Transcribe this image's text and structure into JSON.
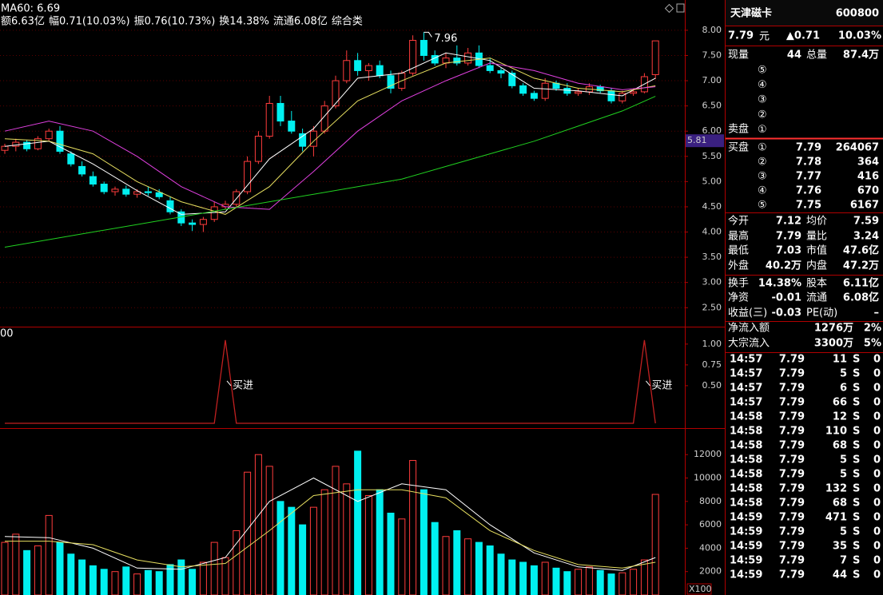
{
  "chart_data": [
    {
      "type": "candlestick",
      "legend": "MA60: 6.69",
      "info": [
        {
          "text": "额6.63亿",
          "color": "#ffffff"
        },
        {
          "text": "幅0.71(10.03%)",
          "color": "#ff4040"
        },
        {
          "text": "振0.76(10.73%)",
          "color": "#ffffff"
        },
        {
          "text": "换14.38%",
          "color": "#ffffff"
        },
        {
          "text": "流通6.08亿",
          "color": "#ffffff"
        },
        {
          "text": "综合类",
          "color": "#e0e060"
        }
      ],
      "open": [
        5.62,
        5.7,
        5.78,
        5.65,
        5.85,
        6.0,
        5.55,
        5.3,
        5.1,
        4.95,
        4.8,
        4.85,
        4.75,
        4.8,
        4.78,
        4.62,
        4.4,
        4.18,
        4.15,
        4.25,
        4.5,
        4.55,
        4.8,
        5.4,
        5.9,
        6.55,
        6.2,
        5.95,
        5.7,
        6.0,
        6.5,
        7.0,
        7.4,
        7.2,
        7.3,
        7.1,
        6.85,
        7.15,
        7.8,
        7.5,
        7.35,
        7.45,
        7.35,
        7.55,
        7.3,
        7.2,
        7.15,
        6.9,
        6.75,
        6.65,
        6.95,
        6.85,
        6.75,
        6.78,
        6.88,
        6.8,
        6.6,
        6.75,
        6.78,
        7.12
      ],
      "high": [
        5.75,
        5.85,
        5.82,
        5.9,
        6.05,
        6.1,
        5.6,
        5.4,
        5.2,
        5.0,
        4.9,
        4.92,
        4.85,
        4.9,
        4.85,
        4.7,
        4.45,
        4.25,
        4.3,
        4.6,
        4.62,
        4.85,
        5.5,
        6.0,
        6.7,
        6.7,
        6.4,
        6.05,
        6.1,
        6.6,
        7.1,
        7.6,
        7.55,
        7.35,
        7.4,
        7.2,
        7.2,
        7.9,
        7.96,
        7.6,
        7.55,
        7.7,
        7.65,
        7.7,
        7.45,
        7.25,
        7.2,
        6.95,
        6.8,
        7.05,
        7.0,
        6.95,
        6.85,
        6.95,
        6.92,
        6.85,
        6.8,
        6.85,
        7.15,
        7.79
      ],
      "low": [
        5.55,
        5.6,
        5.6,
        5.62,
        5.8,
        5.55,
        5.3,
        5.1,
        4.9,
        4.75,
        4.72,
        4.7,
        4.68,
        4.72,
        4.65,
        4.35,
        4.12,
        4.02,
        4.0,
        4.2,
        4.45,
        4.5,
        4.75,
        5.35,
        5.85,
        6.1,
        5.95,
        5.6,
        5.5,
        5.95,
        6.45,
        6.95,
        7.1,
        7.0,
        7.05,
        6.75,
        6.8,
        7.1,
        7.4,
        7.3,
        7.25,
        7.3,
        7.3,
        7.25,
        7.15,
        7.05,
        6.85,
        6.7,
        6.6,
        6.6,
        6.8,
        6.7,
        6.7,
        6.72,
        6.75,
        6.55,
        6.55,
        6.7,
        6.75,
        7.03
      ],
      "close": [
        5.7,
        5.78,
        5.65,
        5.85,
        6.0,
        5.6,
        5.35,
        5.15,
        4.95,
        4.8,
        4.85,
        4.75,
        4.8,
        4.78,
        4.7,
        4.4,
        4.18,
        4.15,
        4.25,
        4.5,
        4.55,
        4.8,
        5.4,
        5.9,
        6.55,
        6.2,
        6.0,
        5.7,
        6.0,
        6.5,
        7.0,
        7.4,
        7.2,
        7.3,
        7.1,
        6.85,
        7.15,
        7.8,
        7.5,
        7.35,
        7.45,
        7.35,
        7.55,
        7.3,
        7.2,
        7.15,
        6.9,
        6.75,
        6.65,
        6.95,
        6.85,
        6.75,
        6.78,
        6.88,
        6.8,
        6.6,
        6.75,
        6.78,
        7.08,
        7.79
      ],
      "up_color": "#ff3c3c",
      "down_color": "#00f0f0",
      "lines": [
        {
          "color": "#ffffff",
          "x": [
            0,
            4,
            8,
            12,
            16,
            20,
            24,
            28,
            32,
            36,
            40,
            44,
            48,
            52,
            56,
            59
          ],
          "values": [
            5.7,
            5.8,
            5.35,
            4.82,
            4.35,
            4.4,
            5.45,
            6.05,
            7.05,
            7.15,
            7.55,
            7.4,
            6.85,
            6.8,
            6.7,
            7.05
          ]
        },
        {
          "color": "#e8e060",
          "x": [
            0,
            4,
            8,
            12,
            16,
            20,
            24,
            28,
            32,
            36,
            40,
            44,
            48,
            52,
            56,
            59
          ],
          "values": [
            5.85,
            5.8,
            5.55,
            5.0,
            4.6,
            4.35,
            4.9,
            5.8,
            6.6,
            7.0,
            7.35,
            7.45,
            7.05,
            6.85,
            6.78,
            6.9
          ]
        },
        {
          "color": "#e040e0",
          "x": [
            0,
            4,
            8,
            12,
            16,
            20,
            24,
            28,
            32,
            36,
            40,
            44,
            48,
            52,
            56,
            59
          ],
          "values": [
            6.0,
            6.2,
            6.0,
            5.5,
            4.9,
            4.5,
            4.45,
            5.2,
            6.0,
            6.6,
            7.0,
            7.35,
            7.2,
            6.95,
            6.82,
            6.88
          ]
        },
        {
          "color": "#20d020",
          "x": [
            0,
            4,
            8,
            12,
            16,
            20,
            24,
            28,
            32,
            36,
            40,
            44,
            48,
            52,
            56,
            59
          ],
          "values": [
            3.7,
            3.85,
            4.0,
            4.15,
            4.3,
            4.45,
            4.6,
            4.75,
            4.9,
            5.05,
            5.3,
            5.55,
            5.8,
            6.1,
            6.4,
            6.69
          ]
        }
      ],
      "annotations": [
        {
          "x": 38,
          "y": 7.96,
          "text": "7.96"
        }
      ],
      "cursor_label": 5.81,
      "ylim": [
        2.14,
        8.6
      ],
      "yticks": [
        {
          "value": 2.5,
          "label": "2.50"
        },
        {
          "value": 3,
          "label": "3.00"
        },
        {
          "value": 3.5,
          "label": "3.50"
        },
        {
          "value": 4,
          "label": "4.00"
        },
        {
          "value": 4.5,
          "label": "4.50"
        },
        {
          "value": 5,
          "label": "5.00"
        },
        {
          "value": 5.5,
          "label": "5.50"
        },
        {
          "value": 6,
          "label": "6.00"
        },
        {
          "value": 6.5,
          "label": "6.50"
        },
        {
          "value": 7,
          "label": "7.00"
        },
        {
          "value": 7.5,
          "label": "7.50"
        },
        {
          "value": 8,
          "label": "8.00"
        }
      ],
      "grid": true
    },
    {
      "type": "line",
      "corner_label": "00",
      "values": [
        0,
        0,
        0,
        0,
        0,
        0,
        0,
        0,
        0,
        0,
        0,
        0,
        0,
        0,
        0,
        0,
        0,
        0,
        0,
        0,
        1,
        0,
        0,
        0,
        0,
        0,
        0,
        0,
        0,
        0,
        0,
        0,
        0,
        0,
        0,
        0,
        0,
        0,
        0,
        0,
        0,
        0,
        0,
        0,
        0,
        0,
        0,
        0,
        0,
        0,
        0,
        0,
        0,
        0,
        0,
        0,
        0,
        0,
        1,
        0
      ],
      "color": "#c02020",
      "annotations": [
        {
          "x": 20,
          "text": "买进"
        },
        {
          "x": 58,
          "text": "买进"
        }
      ],
      "ylim": [
        0,
        1.2
      ],
      "yticks": [
        {
          "value": 0.5,
          "label": "0.50"
        },
        {
          "value": 0.75,
          "label": "0.75"
        },
        {
          "value": 1,
          "label": "1.00"
        }
      ]
    },
    {
      "type": "bar",
      "values": [
        4500,
        5200,
        3800,
        4200,
        6800,
        4500,
        3500,
        3000,
        2500,
        2200,
        2000,
        2400,
        1800,
        2100,
        2000,
        2600,
        3000,
        2200,
        2800,
        4500,
        3200,
        5500,
        10500,
        12000,
        11000,
        8000,
        7500,
        6000,
        7500,
        9000,
        11000,
        9500,
        12300,
        8500,
        9000,
        7000,
        6500,
        11500,
        9000,
        6200,
        5000,
        5500,
        4800,
        4500,
        4200,
        3500,
        3000,
        2800,
        2500,
        2800,
        2300,
        2000,
        2200,
        2400,
        2100,
        1800,
        1900,
        2200,
        3000,
        8600
      ],
      "lines": [
        {
          "color": "#ffffff",
          "x": [
            0,
            4,
            8,
            12,
            16,
            20,
            24,
            28,
            32,
            36,
            40,
            44,
            48,
            52,
            56,
            59
          ],
          "values": [
            5000,
            4900,
            4000,
            2300,
            2200,
            3200,
            8000,
            10000,
            8000,
            9500,
            9000,
            6000,
            3600,
            2400,
            2100,
            3200
          ]
        },
        {
          "color": "#e8e060",
          "x": [
            0,
            4,
            8,
            12,
            16,
            20,
            24,
            28,
            32,
            36,
            40,
            44,
            48,
            52,
            56,
            59
          ],
          "values": [
            4600,
            4600,
            4300,
            3000,
            2400,
            2700,
            5500,
            8500,
            9000,
            9000,
            8300,
            5500,
            3800,
            2600,
            2300,
            2800
          ]
        }
      ],
      "unit_label": "X100",
      "ylim": [
        0,
        14200
      ],
      "yticks": [
        2000,
        4000,
        6000,
        8000,
        10000,
        12000
      ]
    }
  ],
  "quote": {
    "name": "天津磁卡",
    "code": "600800",
    "price": "7.79",
    "unit": "元",
    "change": "▲0.71",
    "pct": "10.03%",
    "volume_row": [
      "现量",
      "44",
      "总量",
      "87.4万"
    ]
  },
  "sell": {
    "label": "卖盘",
    "levels": [
      "⑤",
      "④",
      "③",
      "②",
      "①"
    ]
  },
  "buy": {
    "label": "买盘",
    "levels": [
      [
        "①",
        "7.79",
        "264067"
      ],
      [
        "②",
        "7.78",
        "364"
      ],
      [
        "③",
        "7.77",
        "416"
      ],
      [
        "④",
        "7.76",
        "670"
      ],
      [
        "⑤",
        "7.75",
        "6167"
      ]
    ]
  },
  "stats": [
    [
      "今开",
      "7.12",
      "均价",
      "7.59"
    ],
    [
      "最高",
      "7.79",
      "量比",
      "3.24"
    ],
    [
      "最低",
      "7.03",
      "市值",
      "47.6亿"
    ],
    [
      "外盘",
      "40.2万",
      "内盘",
      "47.2万"
    ],
    [
      "换手",
      "14.38%",
      "股本",
      "6.11亿"
    ],
    [
      "净资",
      "-0.01",
      "流通",
      "6.08亿"
    ],
    [
      "收益(三)",
      "-0.03",
      "PE(动)",
      "–"
    ]
  ],
  "stats_colors": [
    [
      "#ff4040",
      "#ff4040"
    ],
    [
      "#ff4040",
      "#ff4040"
    ],
    [
      "#30e030",
      "#ffffff"
    ],
    [
      "#ff4040",
      "#30e030"
    ],
    [
      "#ffffff",
      "#ffffff"
    ],
    [
      "#ffffff",
      "#ffffff"
    ],
    [
      "#ffffff",
      "#ffffff"
    ]
  ],
  "flows": [
    [
      "净流入额",
      "1276万",
      "2%"
    ],
    [
      "大宗流入",
      "3300万",
      "5%"
    ]
  ],
  "ticks": [
    [
      "14:57",
      "7.79",
      "11",
      "S",
      "0"
    ],
    [
      "14:57",
      "7.79",
      "5",
      "S",
      "0"
    ],
    [
      "14:57",
      "7.79",
      "6",
      "S",
      "0"
    ],
    [
      "14:57",
      "7.79",
      "66",
      "S",
      "0"
    ],
    [
      "14:58",
      "7.79",
      "12",
      "S",
      "0"
    ],
    [
      "14:58",
      "7.79",
      "110",
      "S",
      "0"
    ],
    [
      "14:58",
      "7.79",
      "68",
      "S",
      "0"
    ],
    [
      "14:58",
      "7.79",
      "5",
      "S",
      "0"
    ],
    [
      "14:58",
      "7.79",
      "5",
      "S",
      "0"
    ],
    [
      "14:58",
      "7.79",
      "132",
      "S",
      "0"
    ],
    [
      "14:58",
      "7.79",
      "68",
      "S",
      "0"
    ],
    [
      "14:59",
      "7.79",
      "471",
      "S",
      "0"
    ],
    [
      "14:59",
      "7.79",
      "5",
      "S",
      "0"
    ],
    [
      "14:59",
      "7.79",
      "35",
      "S",
      "0"
    ],
    [
      "14:59",
      "7.79",
      "7",
      "S",
      "0"
    ],
    [
      "14:59",
      "7.79",
      "44",
      "S",
      "0"
    ]
  ]
}
